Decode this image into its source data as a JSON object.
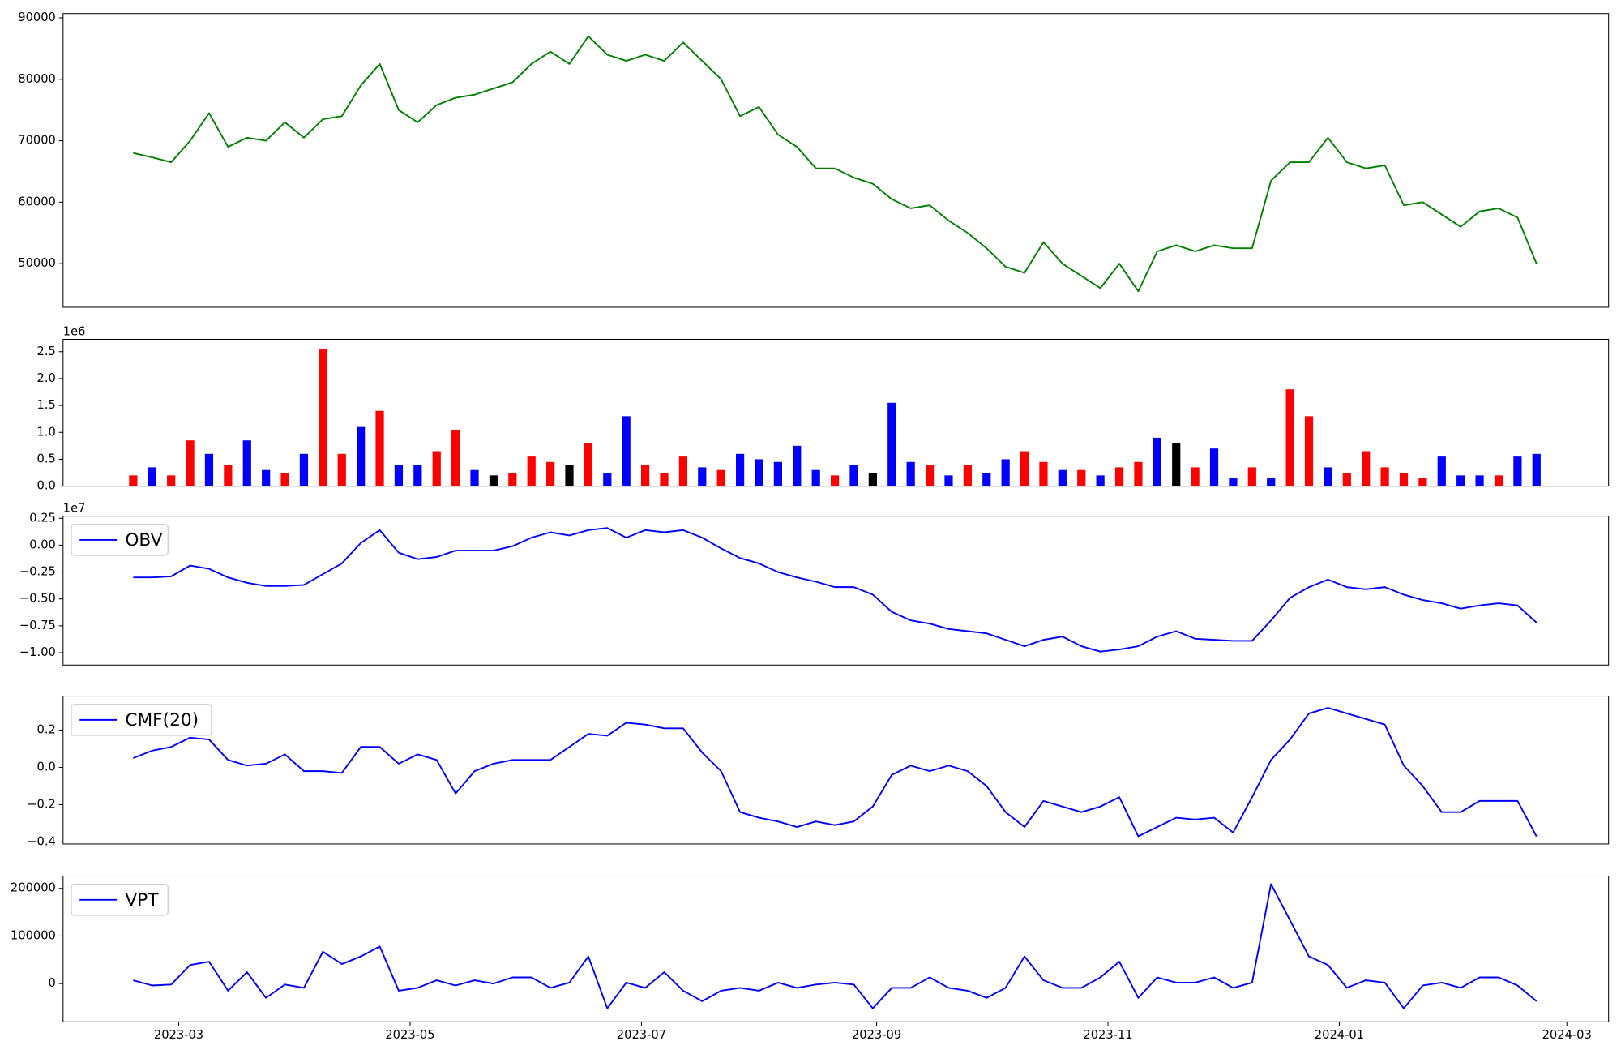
{
  "chart_data": [
    {
      "type": "line",
      "color": "green",
      "x": [
        19405,
        19410,
        19415,
        19420,
        19425,
        19430,
        19435,
        19440,
        19445,
        19450,
        19455,
        19460,
        19465,
        19470,
        19475,
        19480,
        19485,
        19490,
        19495,
        19500,
        19505,
        19510,
        19515,
        19520,
        19525,
        19530,
        19535,
        19540,
        19545,
        19550,
        19555,
        19560,
        19565,
        19570,
        19575,
        19580,
        19585,
        19590,
        19595,
        19600,
        19605,
        19610,
        19615,
        19620,
        19625,
        19630,
        19635,
        19640,
        19645,
        19650,
        19655,
        19660,
        19665,
        19670,
        19675,
        19680,
        19685,
        19690,
        19695,
        19700,
        19705,
        19710,
        19715,
        19720,
        19725,
        19730,
        19735,
        19740,
        19745,
        19750,
        19755,
        19760,
        19765,
        19770,
        19775
      ],
      "values": [
        68000,
        67300,
        66500,
        70000,
        74500,
        69000,
        70500,
        70000,
        73000,
        70500,
        73500,
        74000,
        79000,
        82500,
        75000,
        73000,
        75800,
        77000,
        77500,
        78500,
        79500,
        82500,
        84500,
        82500,
        87000,
        84000,
        83000,
        84000,
        83000,
        86000,
        83000,
        80000,
        74000,
        75500,
        71000,
        69000,
        65500,
        65500,
        64000,
        63000,
        60500,
        59000,
        59500,
        57000,
        55000,
        52500,
        49500,
        48500,
        53500,
        50000,
        48000,
        46000,
        50000,
        45500,
        52000,
        53000,
        52000,
        53000,
        52500,
        52500,
        63500,
        66500,
        66500,
        70500,
        66500,
        65500,
        66000,
        59500,
        60000,
        58000,
        56000,
        58500,
        59000,
        57500,
        50000
      ],
      "xlim": [
        19386.5,
        19794
      ],
      "ylim": [
        42900,
        90700
      ],
      "yticks": [
        50000,
        60000,
        70000,
        80000,
        90000
      ]
    },
    {
      "type": "bar",
      "offset_text": "1e6",
      "x": [
        19405,
        19410,
        19415,
        19420,
        19425,
        19430,
        19435,
        19440,
        19445,
        19450,
        19455,
        19460,
        19465,
        19470,
        19475,
        19480,
        19485,
        19490,
        19495,
        19500,
        19505,
        19510,
        19515,
        19520,
        19525,
        19530,
        19535,
        19540,
        19545,
        19550,
        19555,
        19560,
        19565,
        19570,
        19575,
        19580,
        19585,
        19590,
        19595,
        19600,
        19605,
        19610,
        19615,
        19620,
        19625,
        19630,
        19635,
        19640,
        19645,
        19650,
        19655,
        19660,
        19665,
        19670,
        19675,
        19680,
        19685,
        19690,
        19695,
        19700,
        19705,
        19710,
        19715,
        19720,
        19725,
        19730,
        19735,
        19740,
        19745,
        19750,
        19755,
        19760,
        19765,
        19770,
        19775
      ],
      "values": [
        0.2,
        0.35,
        0.2,
        0.85,
        0.6,
        0.4,
        0.85,
        0.3,
        0.25,
        0.6,
        2.55,
        0.6,
        1.1,
        1.4,
        0.4,
        0.4,
        0.65,
        1.05,
        0.3,
        0.2,
        0.25,
        0.55,
        0.45,
        0.4,
        0.8,
        0.25,
        1.3,
        0.4,
        0.25,
        0.55,
        0.35,
        0.3,
        0.6,
        0.5,
        0.45,
        0.75,
        0.3,
        0.2,
        0.4,
        0.25,
        1.55,
        0.45,
        0.4,
        0.2,
        0.4,
        0.25,
        0.5,
        0.65,
        0.45,
        0.3,
        0.3,
        0.2,
        0.35,
        0.45,
        0.9,
        0.8,
        0.35,
        0.7,
        0.15,
        0.35,
        0.15,
        1.8,
        1.3,
        0.35,
        0.25,
        0.65,
        0.35,
        0.25,
        0.15,
        0.55,
        0.2,
        0.2,
        0.2,
        0.55,
        0.6
      ],
      "colors": [
        "red",
        "blue",
        "red",
        "red",
        "blue",
        "red",
        "blue",
        "blue",
        "red",
        "blue",
        "red",
        "red",
        "blue",
        "red",
        "blue",
        "blue",
        "red",
        "red",
        "blue",
        "black",
        "red",
        "red",
        "red",
        "black",
        "red",
        "blue",
        "blue",
        "red",
        "red",
        "red",
        "blue",
        "red",
        "blue",
        "blue",
        "blue",
        "blue",
        "blue",
        "red",
        "blue",
        "black",
        "blue",
        "blue",
        "red",
        "blue",
        "red",
        "blue",
        "blue",
        "red",
        "red",
        "blue",
        "red",
        "blue",
        "red",
        "red",
        "blue",
        "black",
        "red",
        "blue",
        "blue",
        "red",
        "blue",
        "red",
        "red",
        "blue",
        "red",
        "red",
        "red",
        "red",
        "red",
        "blue",
        "blue",
        "blue",
        "red",
        "blue",
        "blue"
      ],
      "xlim": [
        19386.5,
        19794
      ],
      "ylim": [
        0,
        2.73
      ],
      "yticks": [
        {
          "value": 0,
          "label": "0.0"
        },
        {
          "value": 0.5,
          "label": "0.5"
        },
        {
          "value": 1,
          "label": "1.0"
        },
        {
          "value": 1.5,
          "label": "1.5"
        },
        {
          "value": 2,
          "label": "2.0"
        },
        {
          "value": 2.5,
          "label": "2.5"
        }
      ]
    },
    {
      "type": "line",
      "offset_text": "1e7",
      "legend": "upper left",
      "x": [
        19405,
        19410,
        19415,
        19420,
        19425,
        19430,
        19435,
        19440,
        19445,
        19450,
        19455,
        19460,
        19465,
        19470,
        19475,
        19480,
        19485,
        19490,
        19495,
        19500,
        19505,
        19510,
        19515,
        19520,
        19525,
        19530,
        19535,
        19540,
        19545,
        19550,
        19555,
        19560,
        19565,
        19570,
        19575,
        19580,
        19585,
        19590,
        19595,
        19600,
        19605,
        19610,
        19615,
        19620,
        19625,
        19630,
        19635,
        19640,
        19645,
        19650,
        19655,
        19660,
        19665,
        19670,
        19675,
        19680,
        19685,
        19690,
        19695,
        19700,
        19705,
        19710,
        19715,
        19720,
        19725,
        19730,
        19735,
        19740,
        19745,
        19750,
        19755,
        19760,
        19765,
        19770,
        19775
      ],
      "series": [
        {
          "name": "OBV",
          "color": "blue",
          "values": [
            -0.3,
            -0.3,
            -0.29,
            -0.19,
            -0.22,
            -0.3,
            -0.35,
            -0.38,
            -0.38,
            -0.37,
            -0.27,
            -0.17,
            0.02,
            0.14,
            -0.07,
            -0.13,
            -0.11,
            -0.05,
            -0.05,
            -0.05,
            -0.01,
            0.07,
            0.12,
            0.09,
            0.14,
            0.16,
            0.07,
            0.14,
            0.12,
            0.14,
            0.07,
            -0.03,
            -0.12,
            -0.17,
            -0.25,
            -0.3,
            -0.34,
            -0.39,
            -0.39,
            -0.46,
            -0.62,
            -0.7,
            -0.73,
            -0.78,
            -0.8,
            -0.82,
            -0.88,
            -0.94,
            -0.88,
            -0.85,
            -0.94,
            -0.99,
            -0.97,
            -0.94,
            -0.85,
            -0.8,
            -0.87,
            -0.88,
            -0.89,
            -0.89,
            -0.7,
            -0.49,
            -0.39,
            -0.32,
            -0.39,
            -0.41,
            -0.39,
            -0.46,
            -0.51,
            -0.54,
            -0.59,
            -0.56,
            -0.54,
            -0.56,
            -0.72
          ]
        }
      ],
      "xlim": [
        19386.5,
        19794
      ],
      "ylim": [
        -1.115,
        0.27
      ],
      "yticks": [
        {
          "value": 0.25,
          "label": "0.25"
        },
        {
          "value": 0,
          "label": "0.00"
        },
        {
          "value": -0.25,
          "label": "−0.25"
        },
        {
          "value": -0.5,
          "label": "−0.50"
        },
        {
          "value": -0.75,
          "label": "−0.75"
        },
        {
          "value": -1,
          "label": "−1.00"
        }
      ]
    },
    {
      "type": "line",
      "legend": "upper left",
      "x": [
        19405,
        19410,
        19415,
        19420,
        19425,
        19430,
        19435,
        19440,
        19445,
        19450,
        19455,
        19460,
        19465,
        19470,
        19475,
        19480,
        19485,
        19490,
        19495,
        19500,
        19505,
        19510,
        19515,
        19520,
        19525,
        19530,
        19535,
        19540,
        19545,
        19550,
        19555,
        19560,
        19565,
        19570,
        19575,
        19580,
        19585,
        19590,
        19595,
        19600,
        19605,
        19610,
        19615,
        19620,
        19625,
        19630,
        19635,
        19640,
        19645,
        19650,
        19655,
        19660,
        19665,
        19670,
        19675,
        19680,
        19685,
        19690,
        19695,
        19700,
        19705,
        19710,
        19715,
        19720,
        19725,
        19730,
        19735,
        19740,
        19745,
        19750,
        19755,
        19760,
        19765,
        19770,
        19775
      ],
      "series": [
        {
          "name": "CMF(20)",
          "color": "blue",
          "values": [
            0.05,
            0.09,
            0.11,
            0.16,
            0.15,
            0.04,
            0.01,
            0.02,
            0.07,
            -0.02,
            -0.02,
            -0.03,
            0.11,
            0.11,
            0.02,
            0.07,
            0.04,
            -0.14,
            -0.02,
            0.02,
            0.04,
            0.04,
            0.04,
            0.11,
            0.18,
            0.17,
            0.24,
            0.23,
            0.21,
            0.21,
            0.08,
            -0.02,
            -0.24,
            -0.27,
            -0.29,
            -0.32,
            -0.29,
            -0.31,
            -0.29,
            -0.21,
            -0.04,
            0.01,
            -0.02,
            0.01,
            -0.02,
            -0.1,
            -0.24,
            -0.32,
            -0.18,
            -0.21,
            -0.24,
            -0.21,
            -0.16,
            -0.37,
            -0.32,
            -0.27,
            -0.28,
            -0.27,
            -0.35,
            -0.16,
            0.04,
            0.15,
            0.29,
            0.32,
            0.29,
            0.26,
            0.23,
            0.01,
            -0.1,
            -0.24,
            -0.24,
            -0.18,
            -0.18,
            -0.18,
            -0.37
          ]
        }
      ],
      "xlim": [
        19386.5,
        19794
      ],
      "ylim": [
        -0.411,
        0.383
      ],
      "yticks": [
        {
          "value": 0.2,
          "label": "0.2"
        },
        {
          "value": 0,
          "label": "0.0"
        },
        {
          "value": -0.2,
          "label": "−0.2"
        },
        {
          "value": -0.4,
          "label": "−0.4"
        }
      ]
    },
    {
      "type": "line",
      "legend": "upper left",
      "x": [
        19405,
        19410,
        19415,
        19420,
        19425,
        19430,
        19435,
        19440,
        19445,
        19450,
        19455,
        19460,
        19465,
        19470,
        19475,
        19480,
        19485,
        19490,
        19495,
        19500,
        19505,
        19510,
        19515,
        19520,
        19525,
        19530,
        19535,
        19540,
        19545,
        19550,
        19555,
        19560,
        19565,
        19570,
        19575,
        19580,
        19585,
        19590,
        19595,
        19600,
        19605,
        19610,
        19615,
        19620,
        19625,
        19630,
        19635,
        19640,
        19645,
        19650,
        19655,
        19660,
        19665,
        19670,
        19675,
        19680,
        19685,
        19690,
        19695,
        19700,
        19705,
        19710,
        19715,
        19720,
        19725,
        19730,
        19735,
        19740,
        19745,
        19750,
        19755,
        19760,
        19765,
        19770,
        19775
      ],
      "series": [
        {
          "name": "VPT",
          "color": "blue",
          "values": [
            7000,
            -4000,
            -2000,
            39000,
            46000,
            -15000,
            24000,
            -30000,
            -2000,
            -9000,
            67000,
            41000,
            57000,
            78000,
            -15000,
            -9000,
            7000,
            -4000,
            7000,
            0,
            13000,
            13000,
            -9000,
            2000,
            57000,
            -52000,
            2000,
            -9000,
            24000,
            -15000,
            -37000,
            -15000,
            -9000,
            -15000,
            2000,
            -9000,
            -2000,
            2000,
            -2000,
            -52000,
            -9000,
            -9000,
            13000,
            -9000,
            -15000,
            -30000,
            -9000,
            57000,
            7000,
            -9000,
            -9000,
            13000,
            46000,
            -30000,
            13000,
            2000,
            2000,
            13000,
            -9000,
            2000,
            209000,
            133000,
            57000,
            39000,
            -9000,
            7000,
            2000,
            -52000,
            -4000,
            2000,
            -9000,
            13000,
            13000,
            -4000,
            -37000
          ]
        }
      ],
      "xlim": [
        19386.5,
        19794
      ],
      "ylim": [
        -80400,
        226000
      ],
      "yticks": [
        0,
        100000,
        200000
      ],
      "xticks": [
        {
          "value": 19417,
          "label": "2023-03"
        },
        {
          "value": 19478,
          "label": "2023-05"
        },
        {
          "value": 19539,
          "label": "2023-07"
        },
        {
          "value": 19601,
          "label": "2023-09"
        },
        {
          "value": 19662,
          "label": "2023-11"
        },
        {
          "value": 19723,
          "label": "2024-01"
        },
        {
          "value": 19783,
          "label": "2024-03"
        }
      ]
    }
  ]
}
